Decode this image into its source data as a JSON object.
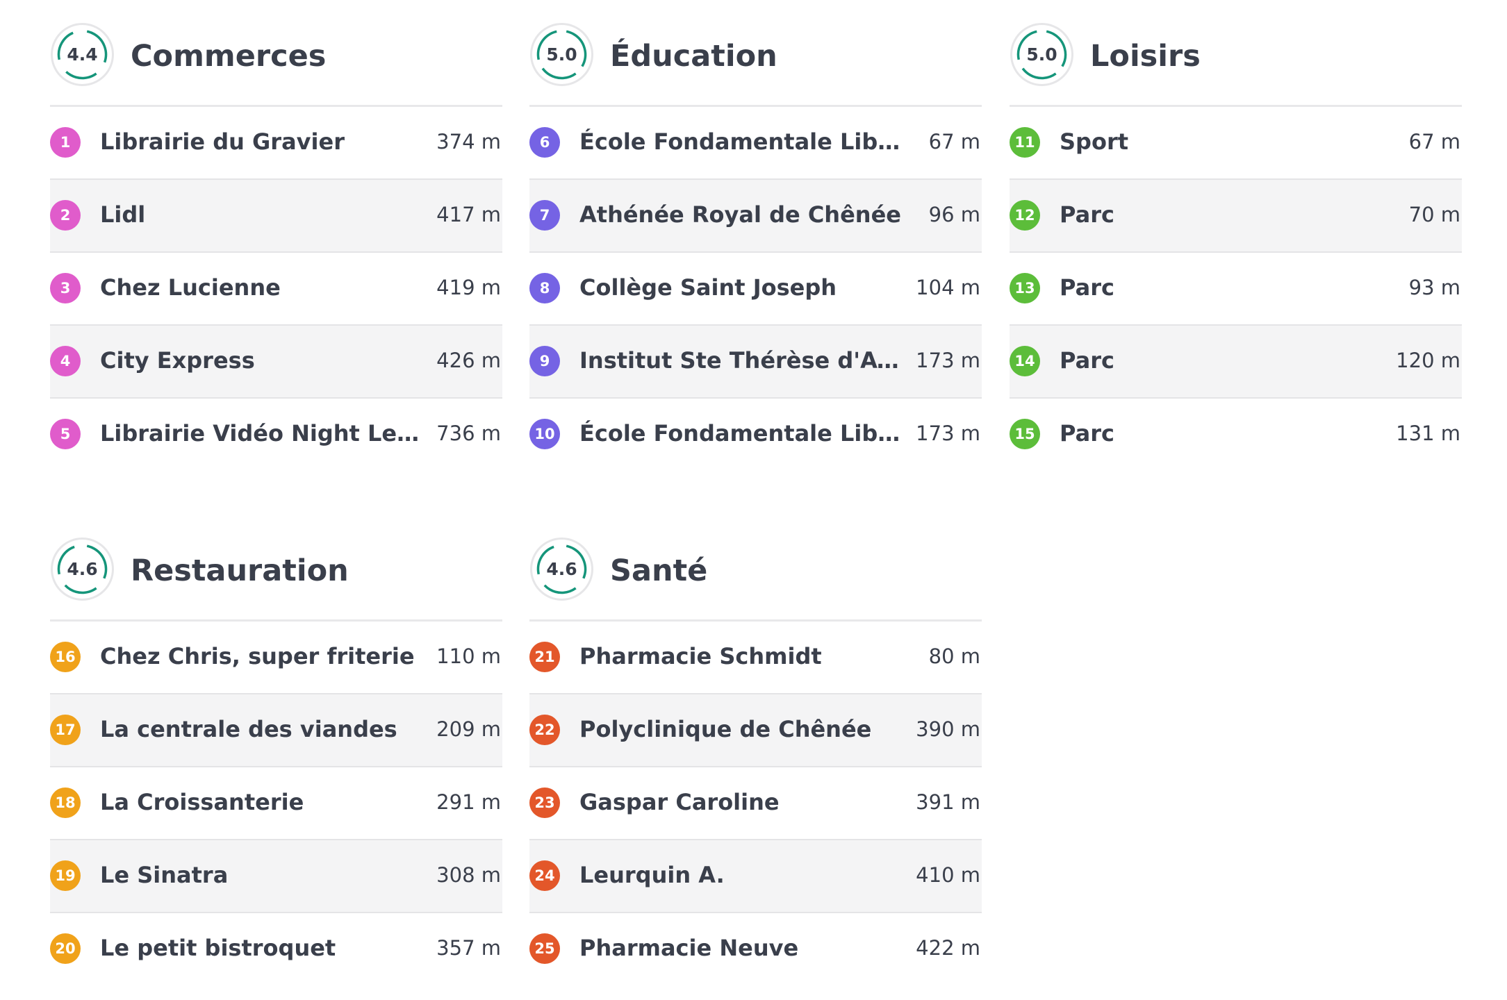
{
  "colors": {
    "commerces": "#e05ccb",
    "education": "#7563e4",
    "loisirs": "#5cbd3a",
    "restauration": "#f0a21a",
    "sante": "#e3572a",
    "ring": "#15957a"
  },
  "sections": [
    {
      "key": "commerces",
      "title": "Commerces",
      "score": "4.4",
      "score_fraction": 0.88,
      "items": [
        {
          "num": "1",
          "name": "Librairie du Gravier",
          "dist": "374 m"
        },
        {
          "num": "2",
          "name": "Lidl",
          "dist": "417 m"
        },
        {
          "num": "3",
          "name": "Chez Lucienne",
          "dist": "419 m"
        },
        {
          "num": "4",
          "name": "City Express",
          "dist": "426 m"
        },
        {
          "num": "5",
          "name": "Librairie Vidéo Night Lespa...",
          "dist": "736 m"
        }
      ]
    },
    {
      "key": "education",
      "title": "Éducation",
      "score": "5.0",
      "score_fraction": 1.0,
      "items": [
        {
          "num": "6",
          "name": "École Fondamentale Libre D...",
          "dist": "67 m"
        },
        {
          "num": "7",
          "name": "Athénée Royal de Chênée",
          "dist": "96 m"
        },
        {
          "num": "8",
          "name": "Collège Saint Joseph",
          "dist": "104 m"
        },
        {
          "num": "9",
          "name": "Institut Ste Thérèse d'Avila",
          "dist": "173 m"
        },
        {
          "num": "10",
          "name": "École Fondamentale Libre d...",
          "dist": "173 m"
        }
      ]
    },
    {
      "key": "loisirs",
      "title": "Loisirs",
      "score": "5.0",
      "score_fraction": 1.0,
      "items": [
        {
          "num": "11",
          "name": "Sport",
          "dist": "67 m"
        },
        {
          "num": "12",
          "name": "Parc",
          "dist": "70 m"
        },
        {
          "num": "13",
          "name": "Parc",
          "dist": "93 m"
        },
        {
          "num": "14",
          "name": "Parc",
          "dist": "120 m"
        },
        {
          "num": "15",
          "name": "Parc",
          "dist": "131 m"
        }
      ]
    },
    {
      "key": "restauration",
      "title": "Restauration",
      "score": "4.6",
      "score_fraction": 0.92,
      "items": [
        {
          "num": "16",
          "name": "Chez Chris, super friterie",
          "dist": "110 m"
        },
        {
          "num": "17",
          "name": "La centrale des viandes",
          "dist": "209 m"
        },
        {
          "num": "18",
          "name": "La Croissanterie",
          "dist": "291 m"
        },
        {
          "num": "19",
          "name": "Le Sinatra",
          "dist": "308 m"
        },
        {
          "num": "20",
          "name": "Le petit bistroquet",
          "dist": "357 m"
        }
      ]
    },
    {
      "key": "sante",
      "title": "Santé",
      "score": "4.6",
      "score_fraction": 0.92,
      "items": [
        {
          "num": "21",
          "name": "Pharmacie Schmidt",
          "dist": "80 m"
        },
        {
          "num": "22",
          "name": "Polyclinique de Chênée",
          "dist": "390 m"
        },
        {
          "num": "23",
          "name": "Gaspar Caroline",
          "dist": "391 m"
        },
        {
          "num": "24",
          "name": "Leurquin A.",
          "dist": "410 m"
        },
        {
          "num": "25",
          "name": "Pharmacie Neuve",
          "dist": "422 m"
        }
      ]
    }
  ]
}
